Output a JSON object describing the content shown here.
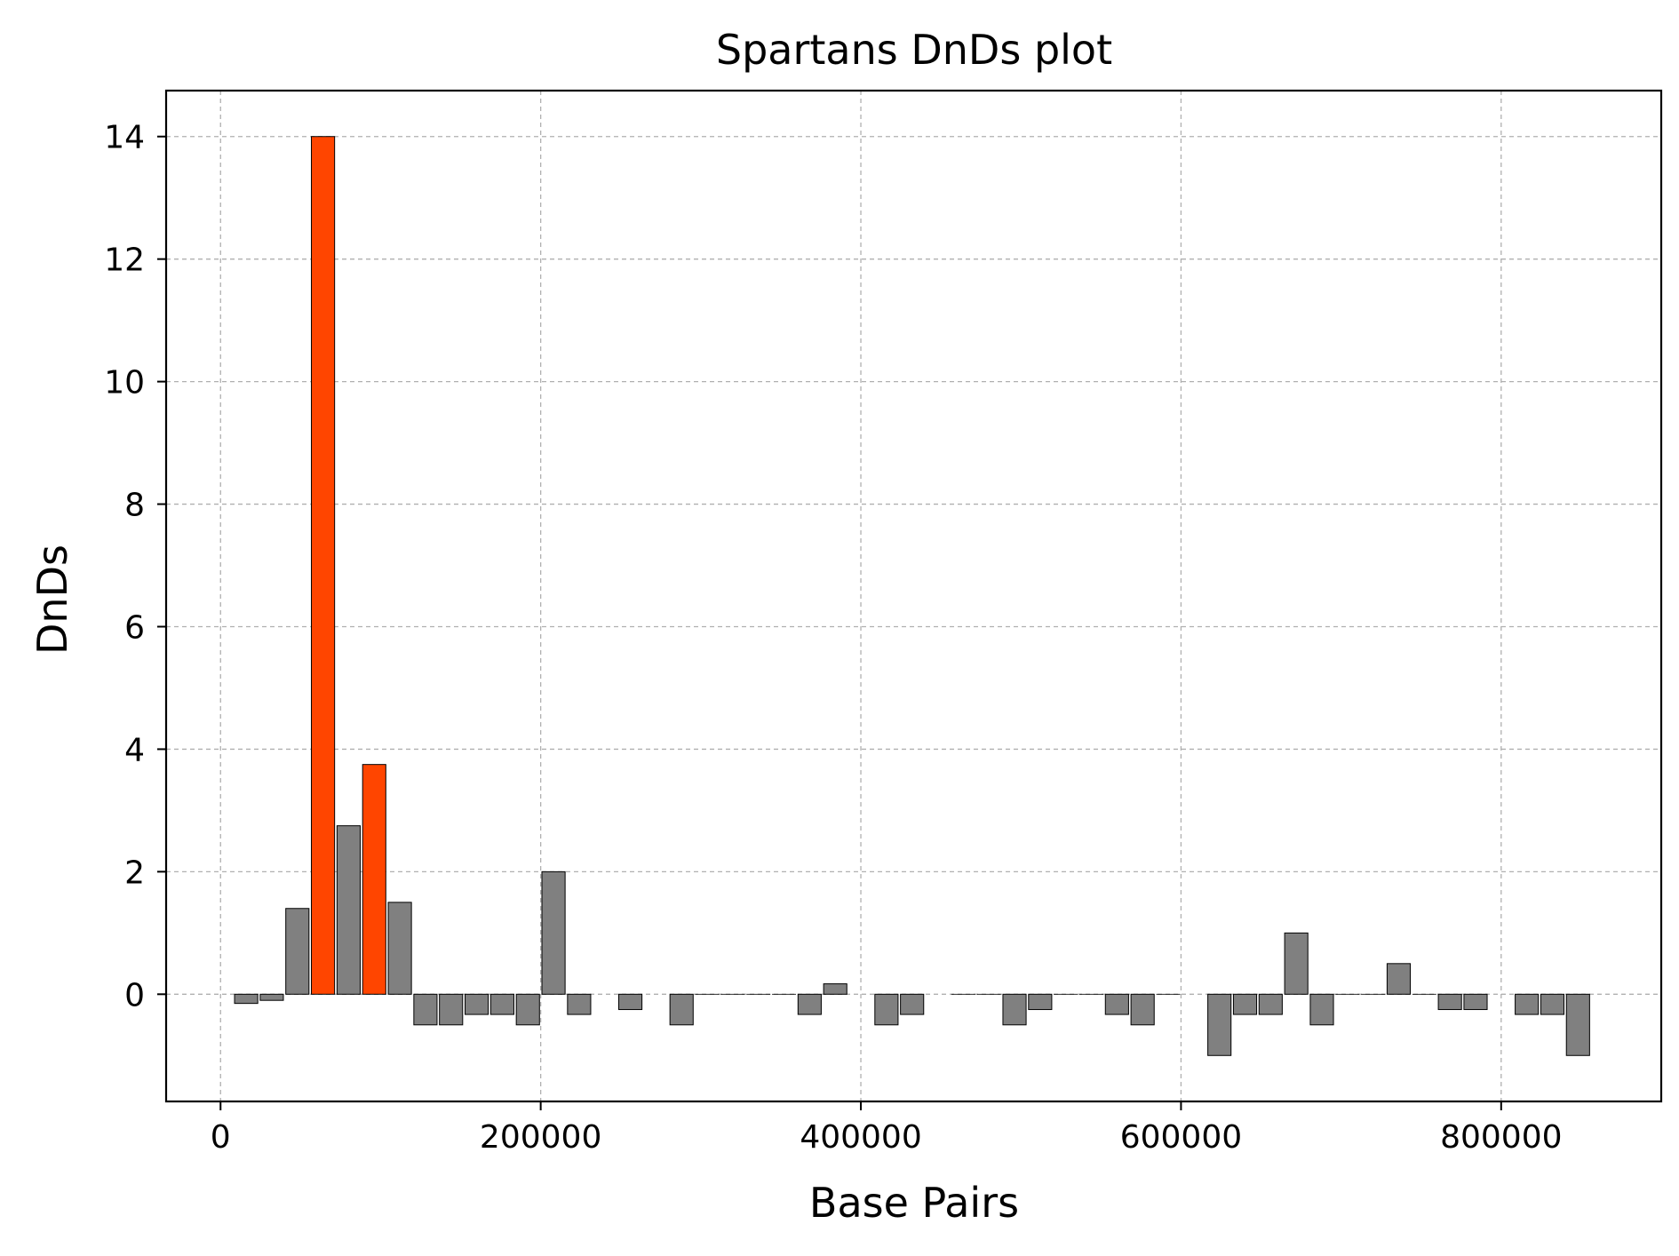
{
  "chart_data": {
    "type": "bar",
    "title": "Spartans DnDs plot",
    "xlabel": "Base Pairs",
    "ylabel": "DnDs",
    "xlim": [
      -34000,
      900000
    ],
    "ylim": [
      -1.75,
      14.75
    ],
    "xticks": [
      0,
      200000,
      400000,
      600000,
      800000
    ],
    "yticks": [
      0,
      2,
      4,
      6,
      8,
      10,
      12,
      14
    ],
    "grid": true,
    "bar_width": 14500,
    "colors": {
      "normal": "#808080",
      "highlight": "#ff4500",
      "edge": "#000000",
      "grid": "#b0b0b0"
    },
    "bars": [
      {
        "x": 16000,
        "y": -0.15,
        "highlight": false
      },
      {
        "x": 32000,
        "y": -0.1,
        "highlight": false
      },
      {
        "x": 48000,
        "y": 1.4,
        "highlight": false
      },
      {
        "x": 64000,
        "y": 14.0,
        "highlight": true
      },
      {
        "x": 80000,
        "y": 2.75,
        "highlight": false
      },
      {
        "x": 96000,
        "y": 3.75,
        "highlight": true
      },
      {
        "x": 112000,
        "y": 1.5,
        "highlight": false
      },
      {
        "x": 128000,
        "y": -0.5,
        "highlight": false
      },
      {
        "x": 144000,
        "y": -0.5,
        "highlight": false
      },
      {
        "x": 160000,
        "y": -0.33,
        "highlight": false
      },
      {
        "x": 176000,
        "y": -0.33,
        "highlight": false
      },
      {
        "x": 192000,
        "y": -0.5,
        "highlight": false
      },
      {
        "x": 208000,
        "y": 2.0,
        "highlight": false
      },
      {
        "x": 224000,
        "y": -0.33,
        "highlight": false
      },
      {
        "x": 256000,
        "y": -0.25,
        "highlight": false
      },
      {
        "x": 288000,
        "y": -0.5,
        "highlight": false
      },
      {
        "x": 304000,
        "y": 0.0,
        "highlight": false
      },
      {
        "x": 320000,
        "y": 0.0,
        "highlight": false
      },
      {
        "x": 336000,
        "y": 0.0,
        "highlight": false
      },
      {
        "x": 352000,
        "y": 0.0,
        "highlight": false
      },
      {
        "x": 368000,
        "y": -0.33,
        "highlight": false
      },
      {
        "x": 384000,
        "y": 0.17,
        "highlight": false
      },
      {
        "x": 416000,
        "y": -0.5,
        "highlight": false
      },
      {
        "x": 432000,
        "y": -0.33,
        "highlight": false
      },
      {
        "x": 464000,
        "y": 0.0,
        "highlight": false
      },
      {
        "x": 480000,
        "y": 0.0,
        "highlight": false
      },
      {
        "x": 496000,
        "y": -0.5,
        "highlight": false
      },
      {
        "x": 512000,
        "y": -0.25,
        "highlight": false
      },
      {
        "x": 528000,
        "y": 0.0,
        "highlight": false
      },
      {
        "x": 544000,
        "y": 0.0,
        "highlight": false
      },
      {
        "x": 560000,
        "y": -0.33,
        "highlight": false
      },
      {
        "x": 576000,
        "y": -0.5,
        "highlight": false
      },
      {
        "x": 592000,
        "y": 0.0,
        "highlight": false
      },
      {
        "x": 624000,
        "y": -1.0,
        "highlight": false
      },
      {
        "x": 640000,
        "y": -0.33,
        "highlight": false
      },
      {
        "x": 656000,
        "y": -0.33,
        "highlight": false
      },
      {
        "x": 672000,
        "y": 1.0,
        "highlight": false
      },
      {
        "x": 688000,
        "y": -0.5,
        "highlight": false
      },
      {
        "x": 704000,
        "y": 0.0,
        "highlight": false
      },
      {
        "x": 720000,
        "y": 0.0,
        "highlight": false
      },
      {
        "x": 736000,
        "y": 0.5,
        "highlight": false
      },
      {
        "x": 752000,
        "y": 0.0,
        "highlight": false
      },
      {
        "x": 768000,
        "y": -0.25,
        "highlight": false
      },
      {
        "x": 784000,
        "y": -0.25,
        "highlight": false
      },
      {
        "x": 816000,
        "y": -0.33,
        "highlight": false
      },
      {
        "x": 832000,
        "y": -0.33,
        "highlight": false
      },
      {
        "x": 848000,
        "y": -1.0,
        "highlight": false
      }
    ]
  }
}
